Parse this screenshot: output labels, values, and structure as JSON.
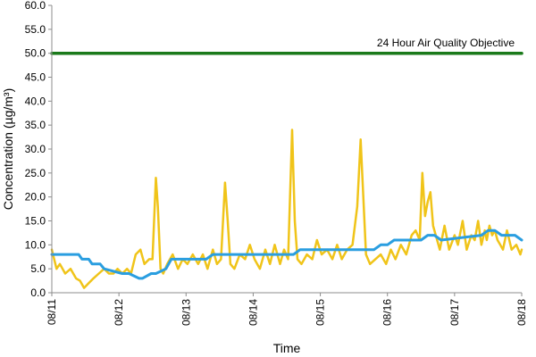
{
  "chart_data": {
    "type": "line",
    "title": "",
    "xlabel": "Time",
    "ylabel": "Concentration (µg/m³)",
    "ylim": [
      0,
      60
    ],
    "yticks": [
      "0.0",
      "5.0",
      "10.0",
      "15.0",
      "20.0",
      "25.0",
      "30.0",
      "35.0",
      "40.0",
      "45.0",
      "50.0",
      "55.0",
      "60.0"
    ],
    "xlim": [
      0,
      7
    ],
    "xticks": [
      "08/11",
      "08/12",
      "08/13",
      "08/14",
      "08/15",
      "08/16",
      "08/17",
      "08/18"
    ],
    "grid": false,
    "legend": "none",
    "annotation": "24 Hour Air Quality Objective",
    "colors": {
      "objective": "#1a7a1a",
      "hourly": "#f0c419",
      "rolling": "#2a9ee0"
    },
    "series": [
      {
        "key": "objective",
        "x": [
          0,
          7
        ],
        "values": [
          50,
          50
        ]
      },
      {
        "key": "hourly",
        "x": [
          0,
          0.07,
          0.12,
          0.2,
          0.28,
          0.36,
          0.42,
          0.48,
          0.55,
          0.62,
          0.7,
          0.78,
          0.85,
          0.92,
          0.98,
          1.05,
          1.12,
          1.18,
          1.25,
          1.32,
          1.38,
          1.45,
          1.5,
          1.55,
          1.58,
          1.62,
          1.66,
          1.72,
          1.8,
          1.88,
          1.95,
          2.02,
          2.1,
          2.18,
          2.25,
          2.32,
          2.4,
          2.46,
          2.52,
          2.58,
          2.62,
          2.66,
          2.72,
          2.8,
          2.88,
          2.95,
          3.02,
          3.1,
          3.18,
          3.25,
          3.32,
          3.4,
          3.46,
          3.52,
          3.58,
          3.62,
          3.66,
          3.72,
          3.8,
          3.88,
          3.95,
          4.02,
          4.1,
          4.18,
          4.25,
          4.32,
          4.4,
          4.48,
          4.55,
          4.6,
          4.64,
          4.68,
          4.74,
          4.82,
          4.9,
          4.98,
          5.05,
          5.12,
          5.2,
          5.28,
          5.36,
          5.42,
          5.48,
          5.52,
          5.56,
          5.6,
          5.64,
          5.68,
          5.72,
          5.78,
          5.85,
          5.92,
          6.0,
          6.05,
          6.12,
          6.18,
          6.25,
          6.3,
          6.35,
          6.4,
          6.45,
          6.48,
          6.52,
          6.56,
          6.6,
          6.64,
          6.68,
          6.72,
          6.78,
          6.85,
          6.92,
          6.98,
          7.0
        ],
        "values": [
          9,
          5,
          6,
          4,
          5,
          3,
          2.5,
          1,
          2,
          3,
          4,
          5,
          4,
          4,
          5,
          4,
          5,
          4,
          8,
          9,
          6,
          7,
          7,
          24,
          18,
          5,
          4,
          6,
          8,
          5,
          7,
          6,
          8,
          6,
          8,
          5,
          9,
          6,
          7,
          23,
          15,
          6,
          5,
          8,
          7,
          10,
          7,
          5,
          9,
          6,
          10,
          6,
          9,
          7,
          34,
          15,
          7,
          6,
          8,
          7,
          11,
          8,
          9,
          7,
          10,
          7,
          9,
          10,
          18,
          32,
          20,
          8,
          6,
          7,
          8,
          6,
          9,
          7,
          10,
          8,
          12,
          13,
          11,
          25,
          16,
          19,
          21,
          14,
          12,
          9,
          14,
          9,
          12,
          10,
          15,
          9,
          12,
          11,
          15,
          10,
          13,
          11,
          14,
          12,
          13,
          11,
          10,
          9,
          13,
          9,
          10,
          8,
          9
        ]
      },
      {
        "key": "rolling",
        "x": [
          0,
          0.4,
          0.45,
          0.55,
          0.6,
          0.72,
          0.78,
          1.05,
          1.15,
          1.3,
          1.35,
          1.48,
          1.55,
          1.7,
          1.78,
          2.3,
          2.4,
          3.0,
          3.1,
          3.3,
          3.4,
          3.6,
          3.7,
          4.4,
          4.5,
          4.8,
          4.9,
          5.0,
          5.1,
          5.5,
          5.6,
          5.7,
          5.8,
          6.4,
          6.5,
          6.6,
          6.7,
          6.9,
          7.0
        ],
        "values": [
          8,
          8,
          7,
          7,
          6,
          6,
          5,
          4,
          4,
          3,
          3,
          4,
          4,
          5,
          7,
          7,
          8,
          8,
          8,
          8,
          8,
          8,
          9,
          9,
          9,
          9,
          10,
          10,
          11,
          11,
          12,
          12,
          11,
          12,
          13,
          13,
          12,
          12,
          11
        ]
      }
    ]
  }
}
